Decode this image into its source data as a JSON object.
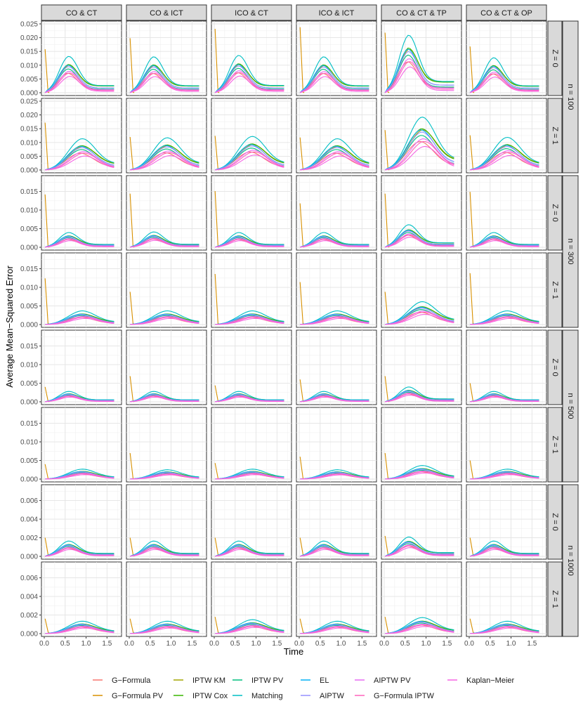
{
  "chart_data": {
    "type": "line",
    "xlabel": "Time",
    "ylabel": "Average Mean−Squared Error",
    "columns": [
      "CO & CT",
      "CO & ICT",
      "ICO & CT",
      "ICO & ICT",
      "CO & CT & TP",
      "CO & CT & OP"
    ],
    "x_ticks": [
      "0.0",
      "0.5",
      "1.0",
      "1.5"
    ],
    "xlim": [
      0,
      1.78
    ],
    "sample_sizes": [
      {
        "label": "n = 100",
        "ylim": [
          0,
          0.025
        ],
        "ticks": [
          "0.000",
          "0.005",
          "0.010",
          "0.015",
          "0.020",
          "0.025"
        ]
      },
      {
        "label": "n = 300",
        "ylim": [
          0,
          0.0185
        ],
        "ticks": [
          "0.000",
          "0.005",
          "0.010",
          "0.015"
        ]
      },
      {
        "label": "n = 500",
        "ylim": [
          0,
          0.0185
        ],
        "ticks": [
          "0.000",
          "0.005",
          "0.010",
          "0.015"
        ]
      },
      {
        "label": "n = 1000",
        "ylim": [
          0,
          0.0074
        ],
        "ticks": [
          "0.000",
          "0.002",
          "0.004",
          "0.006"
        ]
      }
    ],
    "z_labels": [
      "Z = 0",
      "Z = 1"
    ],
    "legend": {
      "position": "bottom",
      "entries": [
        {
          "name": "G−Formula",
          "color": "#F8766D"
        },
        {
          "name": "G−Formula PV",
          "color": "#D89000"
        },
        {
          "name": "IPTW KM",
          "color": "#A3A500"
        },
        {
          "name": "IPTW Cox",
          "color": "#39B600"
        },
        {
          "name": "IPTW PV",
          "color": "#00BF7D"
        },
        {
          "name": "Matching",
          "color": "#00BFC4"
        },
        {
          "name": "EL",
          "color": "#00B0F6"
        },
        {
          "name": "AIPTW",
          "color": "#9590FF"
        },
        {
          "name": "AIPTW PV",
          "color": "#E76BF3"
        },
        {
          "name": "G−Formula IPTW",
          "color": "#FF62BC"
        },
        {
          "name": "Kaplan−Meier",
          "color": "#F564E3"
        }
      ]
    },
    "series_profile": {
      "time": [
        0.0,
        0.1,
        0.2,
        0.3,
        0.4,
        0.5,
        0.6,
        0.7,
        0.8,
        0.9,
        1.0,
        1.1,
        1.2,
        1.3,
        1.4,
        1.5,
        1.6,
        1.7
      ],
      "gformula_pv_start": [
        0.0158,
        0.0198,
        0.0232,
        0.0238,
        0.0218,
        0.0168,
        0.0172,
        0.012,
        0.0124,
        0.0118,
        0.0145,
        0.0126,
        0.0142,
        0.0144,
        0.0151,
        0.0118,
        0.0144,
        0.0149,
        0.0124,
        0.0088,
        0.0136,
        0.0114,
        0.0088,
        0.0138,
        0.004,
        0.0069,
        0.0044,
        0.006,
        0.0069,
        0.005,
        0.004,
        0.007,
        0.0043,
        0.006,
        0.007,
        0.005
      ],
      "peak_z0": [
        0.008,
        0.0079,
        0.0082,
        0.0079,
        0.011,
        0.0077,
        0.0024,
        0.0025,
        0.0024,
        0.0024,
        0.0032,
        0.0024,
        0.0017,
        0.0017,
        0.0017,
        0.0017,
        0.0021,
        0.0017,
        0.001,
        0.001,
        0.001,
        0.001,
        0.0011,
        0.001
      ],
      "peak_z1": [
        0.0068,
        0.007,
        0.0073,
        0.0068,
        0.01,
        0.0071,
        0.0022,
        0.0022,
        0.0022,
        0.0022,
        0.0032,
        0.0022,
        0.0016,
        0.0015,
        0.0016,
        0.0015,
        0.0019,
        0.0016,
        0.0008,
        0.0008,
        0.0009,
        0.0008,
        0.0009,
        0.0008
      ]
    }
  }
}
